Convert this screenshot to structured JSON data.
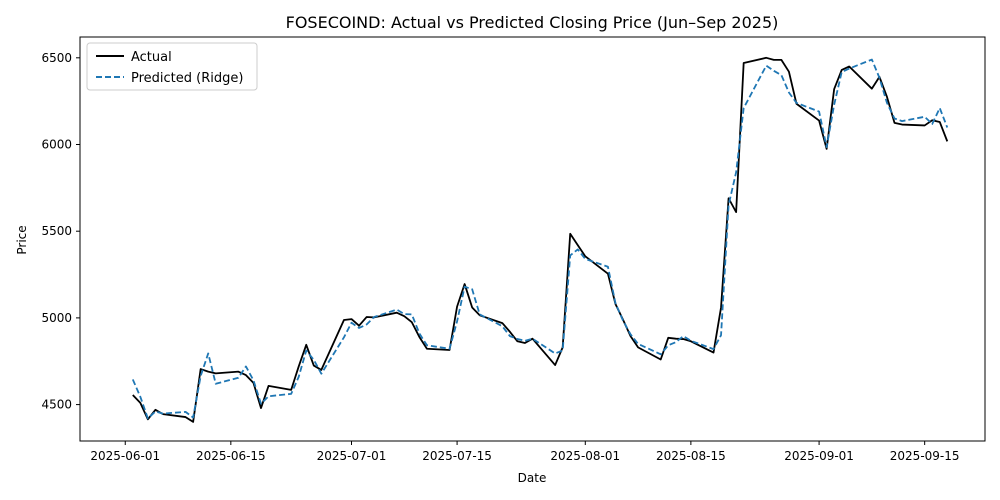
{
  "chart_data": {
    "type": "line",
    "title": "FOSECOIND: Actual vs Predicted Closing Price (Jun–Sep 2025)",
    "xlabel": "Date",
    "ylabel": "Price",
    "xlim": [
      "2025-05-26",
      "2025-09-23"
    ],
    "ylim": [
      4290,
      6620
    ],
    "x_ticks": [
      "2025-06-01",
      "2025-06-15",
      "2025-07-01",
      "2025-07-15",
      "2025-08-01",
      "2025-08-15",
      "2025-09-01",
      "2025-09-15"
    ],
    "y_ticks": [
      4500,
      5000,
      5500,
      6000,
      6500
    ],
    "grid": false,
    "legend": "top-left",
    "series": [
      {
        "name": "Actual",
        "color": "#000000",
        "style": "solid",
        "points": [
          [
            "2025-06-02",
            4555
          ],
          [
            "2025-06-03",
            4510
          ],
          [
            "2025-06-04",
            4415
          ],
          [
            "2025-06-05",
            4470
          ],
          [
            "2025-06-06",
            4445
          ],
          [
            "2025-06-09",
            4428
          ],
          [
            "2025-06-10",
            4400
          ],
          [
            "2025-06-11",
            4705
          ],
          [
            "2025-06-12",
            4690
          ],
          [
            "2025-06-13",
            4680
          ],
          [
            "2025-06-16",
            4690
          ],
          [
            "2025-06-17",
            4670
          ],
          [
            "2025-06-18",
            4625
          ],
          [
            "2025-06-19",
            4480
          ],
          [
            "2025-06-20",
            4608
          ],
          [
            "2025-06-23",
            4585
          ],
          [
            "2025-06-24",
            4720
          ],
          [
            "2025-06-25",
            4845
          ],
          [
            "2025-06-26",
            4725
          ],
          [
            "2025-06-27",
            4700
          ],
          [
            "2025-06-30",
            4988
          ],
          [
            "2025-07-01",
            4993
          ],
          [
            "2025-07-02",
            4955
          ],
          [
            "2025-07-03",
            5005
          ],
          [
            "2025-07-04",
            5003
          ],
          [
            "2025-07-07",
            5030
          ],
          [
            "2025-07-08",
            5010
          ],
          [
            "2025-07-09",
            4975
          ],
          [
            "2025-07-10",
            4890
          ],
          [
            "2025-07-11",
            4822
          ],
          [
            "2025-07-14",
            4815
          ],
          [
            "2025-07-15",
            5065
          ],
          [
            "2025-07-16",
            5195
          ],
          [
            "2025-07-17",
            5060
          ],
          [
            "2025-07-18",
            5015
          ],
          [
            "2025-07-21",
            4970
          ],
          [
            "2025-07-22",
            4920
          ],
          [
            "2025-07-23",
            4865
          ],
          [
            "2025-07-24",
            4855
          ],
          [
            "2025-07-25",
            4880
          ],
          [
            "2025-07-28",
            4728
          ],
          [
            "2025-07-29",
            4830
          ],
          [
            "2025-07-30",
            5485
          ],
          [
            "2025-07-31",
            5420
          ],
          [
            "2025-08-01",
            5355
          ],
          [
            "2025-08-04",
            5255
          ],
          [
            "2025-08-05",
            5080
          ],
          [
            "2025-08-06",
            4990
          ],
          [
            "2025-08-07",
            4895
          ],
          [
            "2025-08-08",
            4830
          ],
          [
            "2025-08-11",
            4760
          ],
          [
            "2025-08-12",
            4885
          ],
          [
            "2025-08-13",
            4880
          ],
          [
            "2025-08-14",
            4878
          ],
          [
            "2025-08-15",
            4865
          ],
          [
            "2025-08-18",
            4800
          ],
          [
            "2025-08-19",
            5060
          ],
          [
            "2025-08-20",
            5690
          ],
          [
            "2025-08-21",
            5610
          ],
          [
            "2025-08-22",
            6470
          ],
          [
            "2025-08-25",
            6500
          ],
          [
            "2025-08-26",
            6488
          ],
          [
            "2025-08-27",
            6488
          ],
          [
            "2025-08-28",
            6420
          ],
          [
            "2025-08-29",
            6235
          ],
          [
            "2025-09-01",
            6138
          ],
          [
            "2025-09-02",
            5975
          ],
          [
            "2025-09-03",
            6320
          ],
          [
            "2025-09-04",
            6430
          ],
          [
            "2025-09-05",
            6450
          ],
          [
            "2025-09-08",
            6322
          ],
          [
            "2025-09-09",
            6390
          ],
          [
            "2025-09-10",
            6275
          ],
          [
            "2025-09-11",
            6125
          ],
          [
            "2025-09-12",
            6115
          ],
          [
            "2025-09-15",
            6110
          ],
          [
            "2025-09-16",
            6140
          ],
          [
            "2025-09-17",
            6130
          ],
          [
            "2025-09-18",
            6018
          ]
        ]
      },
      {
        "name": "Predicted (Ridge)",
        "color": "#1f77b4",
        "style": "dashed",
        "points": [
          [
            "2025-06-02",
            4645
          ],
          [
            "2025-06-03",
            4545
          ],
          [
            "2025-06-04",
            4420
          ],
          [
            "2025-06-05",
            4460
          ],
          [
            "2025-06-06",
            4448
          ],
          [
            "2025-06-09",
            4458
          ],
          [
            "2025-06-10",
            4425
          ],
          [
            "2025-06-11",
            4665
          ],
          [
            "2025-06-12",
            4795
          ],
          [
            "2025-06-13",
            4620
          ],
          [
            "2025-06-16",
            4655
          ],
          [
            "2025-06-17",
            4720
          ],
          [
            "2025-06-18",
            4640
          ],
          [
            "2025-06-19",
            4505
          ],
          [
            "2025-06-20",
            4548
          ],
          [
            "2025-06-23",
            4562
          ],
          [
            "2025-06-24",
            4660
          ],
          [
            "2025-06-25",
            4812
          ],
          [
            "2025-06-26",
            4758
          ],
          [
            "2025-06-27",
            4678
          ],
          [
            "2025-06-30",
            4888
          ],
          [
            "2025-07-01",
            4972
          ],
          [
            "2025-07-02",
            4942
          ],
          [
            "2025-07-03",
            4962
          ],
          [
            "2025-07-04",
            5005
          ],
          [
            "2025-07-07",
            5048
          ],
          [
            "2025-07-08",
            5022
          ],
          [
            "2025-07-09",
            5020
          ],
          [
            "2025-07-10",
            4910
          ],
          [
            "2025-07-11",
            4842
          ],
          [
            "2025-07-14",
            4822
          ],
          [
            "2025-07-15",
            4980
          ],
          [
            "2025-07-16",
            5180
          ],
          [
            "2025-07-17",
            5165
          ],
          [
            "2025-07-18",
            5020
          ],
          [
            "2025-07-21",
            4952
          ],
          [
            "2025-07-22",
            4895
          ],
          [
            "2025-07-23",
            4878
          ],
          [
            "2025-07-24",
            4868
          ],
          [
            "2025-07-25",
            4880
          ],
          [
            "2025-07-28",
            4795
          ],
          [
            "2025-07-29",
            4812
          ],
          [
            "2025-07-30",
            5360
          ],
          [
            "2025-07-31",
            5395
          ],
          [
            "2025-08-01",
            5340
          ],
          [
            "2025-08-04",
            5295
          ],
          [
            "2025-08-05",
            5085
          ],
          [
            "2025-08-06",
            4985
          ],
          [
            "2025-08-07",
            4905
          ],
          [
            "2025-08-08",
            4850
          ],
          [
            "2025-08-11",
            4790
          ],
          [
            "2025-08-12",
            4842
          ],
          [
            "2025-08-13",
            4860
          ],
          [
            "2025-08-14",
            4895
          ],
          [
            "2025-08-15",
            4868
          ],
          [
            "2025-08-18",
            4820
          ],
          [
            "2025-08-19",
            4900
          ],
          [
            "2025-08-20",
            5650
          ],
          [
            "2025-08-21",
            5840
          ],
          [
            "2025-08-22",
            6210
          ],
          [
            "2025-08-25",
            6455
          ],
          [
            "2025-08-26",
            6425
          ],
          [
            "2025-08-27",
            6400
          ],
          [
            "2025-08-28",
            6300
          ],
          [
            "2025-08-29",
            6240
          ],
          [
            "2025-09-01",
            6190
          ],
          [
            "2025-09-02",
            5985
          ],
          [
            "2025-09-03",
            6230
          ],
          [
            "2025-09-04",
            6418
          ],
          [
            "2025-09-05",
            6438
          ],
          [
            "2025-09-08",
            6490
          ],
          [
            "2025-09-09",
            6385
          ],
          [
            "2025-09-10",
            6240
          ],
          [
            "2025-09-11",
            6150
          ],
          [
            "2025-09-12",
            6135
          ],
          [
            "2025-09-15",
            6160
          ],
          [
            "2025-09-16",
            6118
          ],
          [
            "2025-09-17",
            6210
          ],
          [
            "2025-09-18",
            6098
          ]
        ]
      }
    ]
  }
}
